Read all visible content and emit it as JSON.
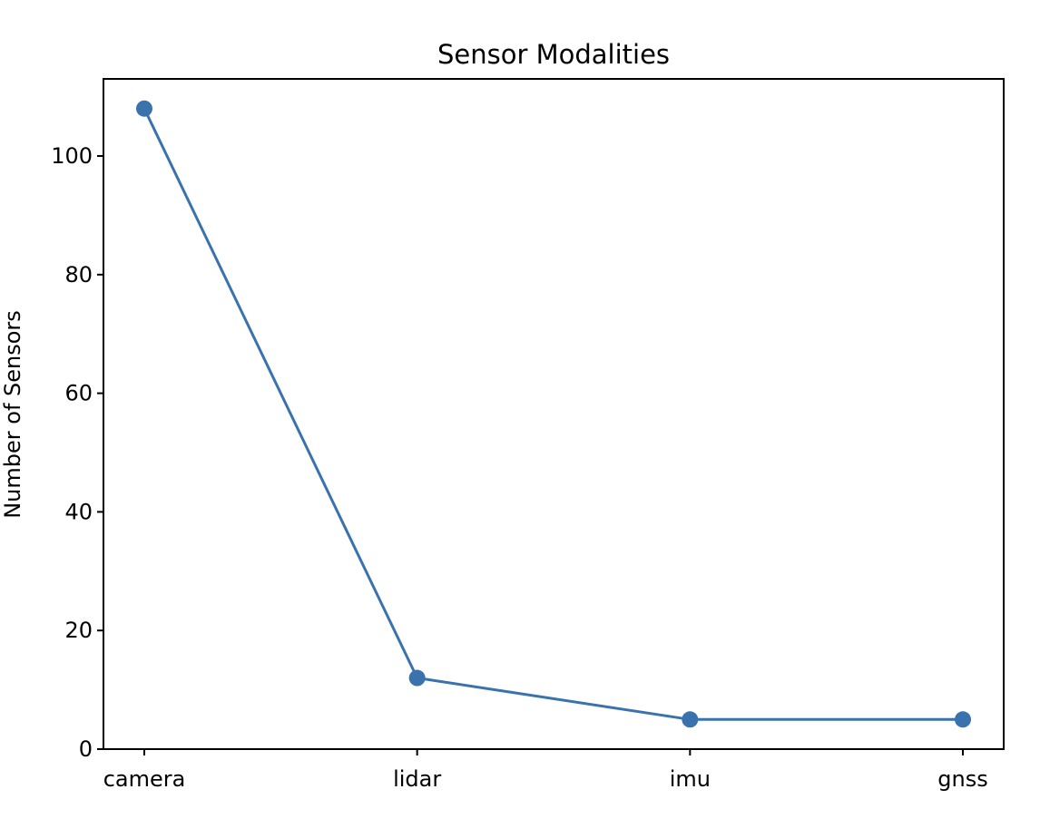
{
  "chart_data": {
    "type": "line",
    "title": "Sensor Modalities",
    "xlabel": "",
    "ylabel": "Number of Sensors",
    "categories": [
      "camera",
      "lidar",
      "imu",
      "gnss"
    ],
    "series": [
      {
        "values": [
          108,
          12,
          5,
          5
        ]
      }
    ],
    "ylim": [
      0,
      113
    ],
    "yticks": [
      0,
      20,
      40,
      60,
      80,
      100
    ],
    "grid": false,
    "line_color": "#3a72ad",
    "marker": "circle"
  }
}
